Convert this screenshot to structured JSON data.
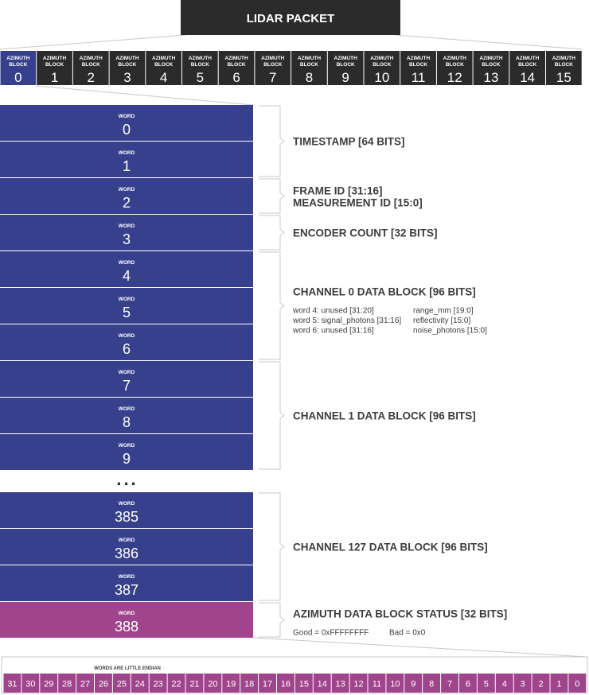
{
  "header": {
    "title": "LIDAR PACKET"
  },
  "azimuth_blocks": {
    "label_line1": "AZIMUTH",
    "label_line2": "BLOCK",
    "numbers": [
      "0",
      "1",
      "2",
      "3",
      "4",
      "5",
      "6",
      "7",
      "8",
      "9",
      "10",
      "11",
      "12",
      "13",
      "14",
      "15"
    ],
    "selected_index": 0
  },
  "words": {
    "label": "WORD",
    "top": [
      "0",
      "1",
      "2",
      "3",
      "4",
      "5",
      "6",
      "7",
      "8",
      "9"
    ],
    "ellipsis": "...",
    "bottom": [
      "385",
      "386",
      "387",
      "388"
    ],
    "highlight_value": "388"
  },
  "fields": [
    {
      "title": "TIMESTAMP [64 BITS]"
    },
    {
      "title": "FRAME ID [31:16]",
      "title2": "MEASUREMENT ID [15:0]"
    },
    {
      "title": "ENCODER COUNT [32 BITS]"
    },
    {
      "title": "CHANNEL 0 DATA BLOCK [96 BITS]",
      "details": [
        {
          "left": "word 4: unused [31:20]",
          "right": "range_mm [19:0]"
        },
        {
          "left": "word 5: signal_photons [31:16]",
          "right": "reflectivity [15:0]"
        },
        {
          "left": "word 6: unused [31:16]",
          "right": "noise_photons [15:0]"
        }
      ]
    },
    {
      "title": "CHANNEL 1 DATA BLOCK  [96 BITS]"
    },
    {
      "title": "CHANNEL 127 DATA BLOCK [96 BITS]"
    },
    {
      "title": "AZIMUTH DATA BLOCK STATUS [32 BITS]",
      "details": [
        {
          "left": "Good = 0xFFFFFFFF",
          "right": "Bad = 0x0"
        }
      ]
    }
  ],
  "bits": {
    "note": "WORDS ARE LITTLE ENDIAN",
    "labels": [
      "31",
      "30",
      "29",
      "28",
      "27",
      "26",
      "25",
      "24",
      "23",
      "22",
      "21",
      "20",
      "19",
      "18",
      "17",
      "16",
      "15",
      "14",
      "13",
      "12",
      "11",
      "10",
      "9",
      "8",
      "7",
      "6",
      "5",
      "4",
      "3",
      "2",
      "1",
      "0"
    ]
  },
  "colors": {
    "blue": "#36408c",
    "magenta": "#a0458c",
    "dark": "#2b2b2b",
    "text": "#3d3d3d",
    "bracket": "#c8c8c8"
  }
}
